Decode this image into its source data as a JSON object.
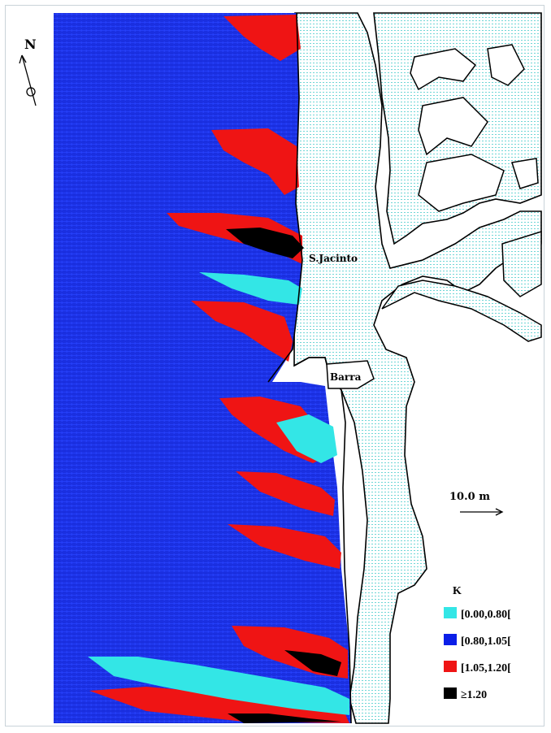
{
  "north": {
    "label": "N"
  },
  "places": {
    "sjacinto": "S.Jacinto",
    "barra": "Barra"
  },
  "scale": {
    "label": "10.0  m"
  },
  "legend": {
    "title": "K",
    "items": [
      {
        "label": "[0.00,0.80[",
        "color": "#33e6e6"
      },
      {
        "label": "[0.80,1.05[",
        "color": "#0a1ee8"
      },
      {
        "label": "[1.05,1.20[",
        "color": "#ef1414"
      },
      {
        "label": "≥1.20",
        "color": "#000000"
      }
    ]
  },
  "colors": {
    "sea": "#1a2fe0",
    "land_water": "#bfeeee",
    "coast": "#000000"
  }
}
